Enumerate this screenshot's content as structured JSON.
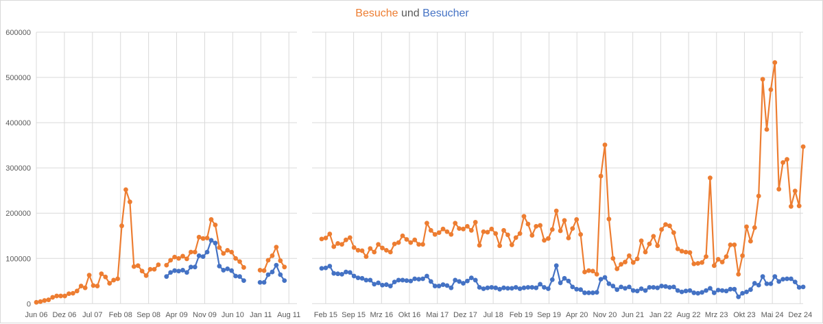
{
  "chart_data": {
    "type": "line",
    "title": {
      "part1": "Besuche",
      "part2": "und",
      "part3": "Besucher"
    },
    "xlabel": "",
    "ylabel": "",
    "ylim": [
      0,
      600000
    ],
    "yticks": [
      "0",
      "100000",
      "200000",
      "300000",
      "400000",
      "500000",
      "600000"
    ],
    "grid": true,
    "legend": "none",
    "x_axis_break": [
      "2011-08",
      "2015-01"
    ],
    "series_colors": {
      "Besuche": "#ED7D31",
      "Besucher": "#4472C4"
    },
    "segments": [
      {
        "start_month": "2006-06",
        "xtick_labels": [
          "Jun 06",
          "Dez 06",
          "Jul 07",
          "Feb 08",
          "Sep 08",
          "Apr 09",
          "Nov 09",
          "Jun 10",
          "Jan 11",
          "Aug 11"
        ],
        "series": [
          {
            "name": "Besuche",
            "values": [
              3000,
              4500,
              7000,
              8500,
              14000,
              17000,
              17000,
              17000,
              22000,
              23000,
              28000,
              39000,
              35000,
              63000,
              40000,
              39000,
              66000,
              59000,
              45000,
              52000,
              55000,
              172000,
              252000,
              225000,
              82000,
              84000,
              72000,
              62000,
              76000,
              76000,
              86000,
              null,
              85000,
              96000,
              103000,
              100000,
              105000,
              99000,
              114000,
              114000,
              147000,
              144000,
              145000,
              186000,
              174000,
              124000,
              111000,
              118000,
              114000,
              100000,
              93000,
              80000,
              null,
              null,
              null,
              74000,
              73000,
              96000,
              106000,
              125000,
              95000,
              81000
            ]
          },
          {
            "name": "Besucher",
            "values": [
              null,
              null,
              null,
              null,
              null,
              null,
              null,
              null,
              null,
              null,
              null,
              null,
              null,
              null,
              null,
              null,
              null,
              null,
              null,
              null,
              null,
              null,
              null,
              null,
              null,
              null,
              null,
              null,
              null,
              null,
              null,
              null,
              60000,
              69000,
              73000,
              72000,
              74000,
              69000,
              81000,
              81000,
              106000,
              104000,
              114000,
              140000,
              134000,
              83000,
              74000,
              77000,
              73000,
              61000,
              60000,
              51000,
              null,
              null,
              null,
              47000,
              47000,
              64000,
              70000,
              85000,
              64000,
              51000
            ]
          }
        ]
      },
      {
        "start_month": "2015-01",
        "xtick_labels": [
          "Feb 15",
          "Sep 15",
          "Mrz 16",
          "Okt 16",
          "Mai 17",
          "Dez 17",
          "Jul 18",
          "Feb 19",
          "Sep 19",
          "Apr 20",
          "Nov 20",
          "Jun 21",
          "Jan 22",
          "Aug 22",
          "Mrz 23",
          "Okt 23",
          "Mai 24",
          "Dez 24"
        ],
        "series": [
          {
            "name": "Besuche",
            "values": [
              143000,
              145000,
              154000,
              126000,
              133000,
              131000,
              141000,
              146000,
              124000,
              118000,
              117000,
              104000,
              122000,
              114000,
              131000,
              123000,
              118000,
              114000,
              132000,
              135000,
              150000,
              142000,
              135000,
              141000,
              131000,
              131000,
              178000,
              162000,
              153000,
              157000,
              165000,
              159000,
              153000,
              178000,
              166000,
              165000,
              171000,
              162000,
              180000,
              129000,
              159000,
              158000,
              165000,
              155000,
              128000,
              162000,
              152000,
              130000,
              146000,
              155000,
              193000,
              176000,
              151000,
              171000,
              173000,
              140000,
              144000,
              164000,
              205000,
              161000,
              184000,
              145000,
              166000,
              186000,
              153000,
              70000,
              73000,
              72000,
              65000,
              282000,
              351000,
              187000,
              100000,
              77000,
              87000,
              92000,
              106000,
              91000,
              99000,
              139000,
              114000,
              132000,
              149000,
              128000,
              164000,
              175000,
              172000,
              157000,
              121000,
              116000,
              114000,
              113000,
              88000,
              89000,
              91000,
              104000,
              278000,
              84000,
              98000,
              92000,
              104000,
              130000,
              130000,
              65000,
              106000,
              170000,
              138000,
              168000,
              238000,
              496000,
              385000,
              473000,
              533000,
              253000,
              312000,
              319000,
              215000,
              249000,
              216000,
              347000
            ]
          },
          {
            "name": "Besucher",
            "values": [
              78000,
              79000,
              83000,
              67000,
              66000,
              65000,
              70000,
              69000,
              61000,
              57000,
              56000,
              52000,
              52000,
              43000,
              46000,
              41000,
              42000,
              39000,
              48000,
              52000,
              52000,
              51000,
              50000,
              55000,
              54000,
              55000,
              61000,
              49000,
              39000,
              39000,
              42000,
              40000,
              35000,
              52000,
              49000,
              45000,
              50000,
              57000,
              52000,
              36000,
              33000,
              35000,
              36000,
              35000,
              32000,
              35000,
              34000,
              34000,
              36000,
              33000,
              35000,
              36000,
              36000,
              35000,
              43000,
              36000,
              33000,
              53000,
              84000,
              46000,
              56000,
              50000,
              37000,
              32000,
              31000,
              24000,
              24000,
              24000,
              25000,
              54000,
              58000,
              44000,
              39000,
              31000,
              37000,
              34000,
              37000,
              29000,
              28000,
              33000,
              29000,
              36000,
              36000,
              35000,
              39000,
              38000,
              36000,
              37000,
              29000,
              26000,
              28000,
              29000,
              24000,
              23000,
              25000,
              29000,
              34000,
              24000,
              30000,
              29000,
              28000,
              32000,
              32000,
              15000,
              23000,
              26000,
              31000,
              45000,
              41000,
              60000,
              44000,
              44000,
              60000,
              49000,
              54000,
              55000,
              55000,
              48000,
              36000,
              37000
            ]
          }
        ]
      }
    ]
  }
}
